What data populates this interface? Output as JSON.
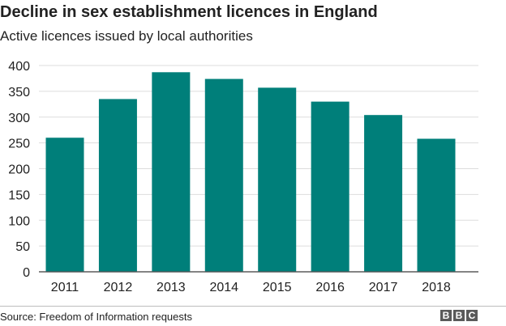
{
  "chart_data": {
    "type": "bar",
    "title": "Decline in sex establishment licences in England",
    "subtitle": "Active licences issued by local authorities",
    "categories": [
      "2011",
      "2012",
      "2013",
      "2014",
      "2015",
      "2016",
      "2017",
      "2018"
    ],
    "values": [
      260,
      335,
      387,
      374,
      357,
      330,
      304,
      258
    ],
    "ylim": [
      0,
      400
    ],
    "yticks": [
      0,
      50,
      100,
      150,
      200,
      250,
      300,
      350,
      400
    ],
    "grid": true,
    "legend": "none",
    "bar_color": "#007f7a"
  },
  "footer": {
    "source": "Source: Freedom of Information requests",
    "logo_letters": [
      "B",
      "B",
      "C"
    ]
  }
}
